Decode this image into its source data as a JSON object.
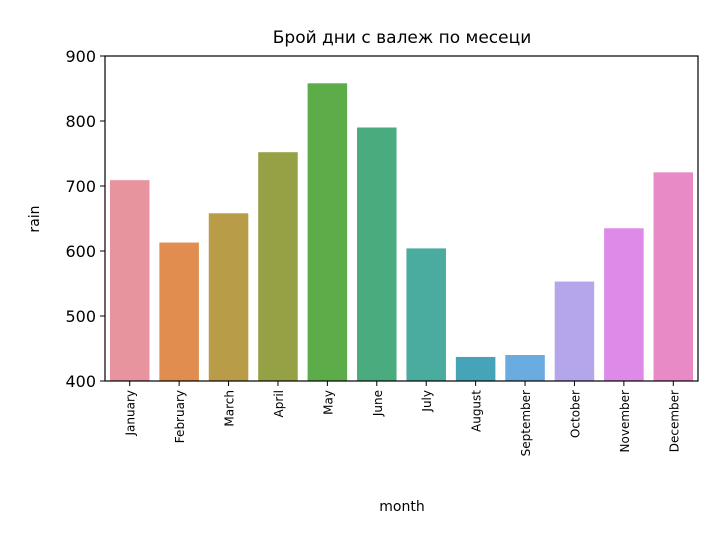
{
  "chart_data": {
    "type": "bar",
    "title": "Брой дни с валеж по месеци",
    "xlabel": "month",
    "ylabel": "rain",
    "categories": [
      "January",
      "February",
      "March",
      "April",
      "May",
      "June",
      "July",
      "August",
      "September",
      "October",
      "November",
      "December"
    ],
    "values": [
      709,
      613,
      658,
      752,
      858,
      790,
      604,
      437,
      440,
      553,
      635,
      721
    ],
    "colors": [
      "#e8949f",
      "#e08d4f",
      "#b99c47",
      "#96a145",
      "#5cad49",
      "#4aab7e",
      "#4aab9f",
      "#45a4b8",
      "#6aabe0",
      "#b5a6eb",
      "#dd8ae8",
      "#e88ac5"
    ],
    "ylim": [
      400,
      900
    ],
    "yticks": [
      400,
      500,
      600,
      700,
      800,
      900
    ],
    "grid": false,
    "legend": "none"
  }
}
